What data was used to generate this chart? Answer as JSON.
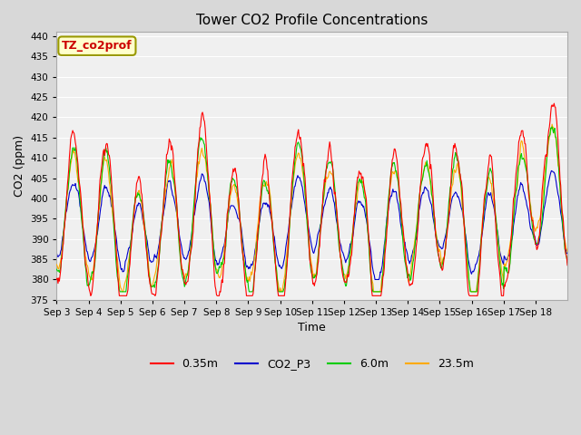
{
  "title": "Tower CO2 Profile Concentrations",
  "xlabel": "Time",
  "ylabel": "CO2 (ppm)",
  "ylim": [
    375,
    441
  ],
  "yticks": [
    375,
    380,
    385,
    390,
    395,
    400,
    405,
    410,
    415,
    420,
    425,
    430,
    435,
    440
  ],
  "xtick_labels": [
    "Sep 3",
    "Sep 4",
    "Sep 5",
    "Sep 6",
    "Sep 7",
    "Sep 8",
    "Sep 9",
    "Sep 10",
    "Sep 11",
    "Sep 12",
    "Sep 13",
    "Sep 14",
    "Sep 15",
    "Sep 16",
    "Sep 17",
    "Sep 18"
  ],
  "series_colors": {
    "0.35m": "#ff0000",
    "CO2_P3": "#0000cc",
    "6.0m": "#00cc00",
    "23.5m": "#ffaa00"
  },
  "annotation_text": "TZ_co2prof",
  "annotation_bg": "#ffffcc",
  "annotation_border": "#999900",
  "n_days": 16,
  "points_per_day": 48
}
